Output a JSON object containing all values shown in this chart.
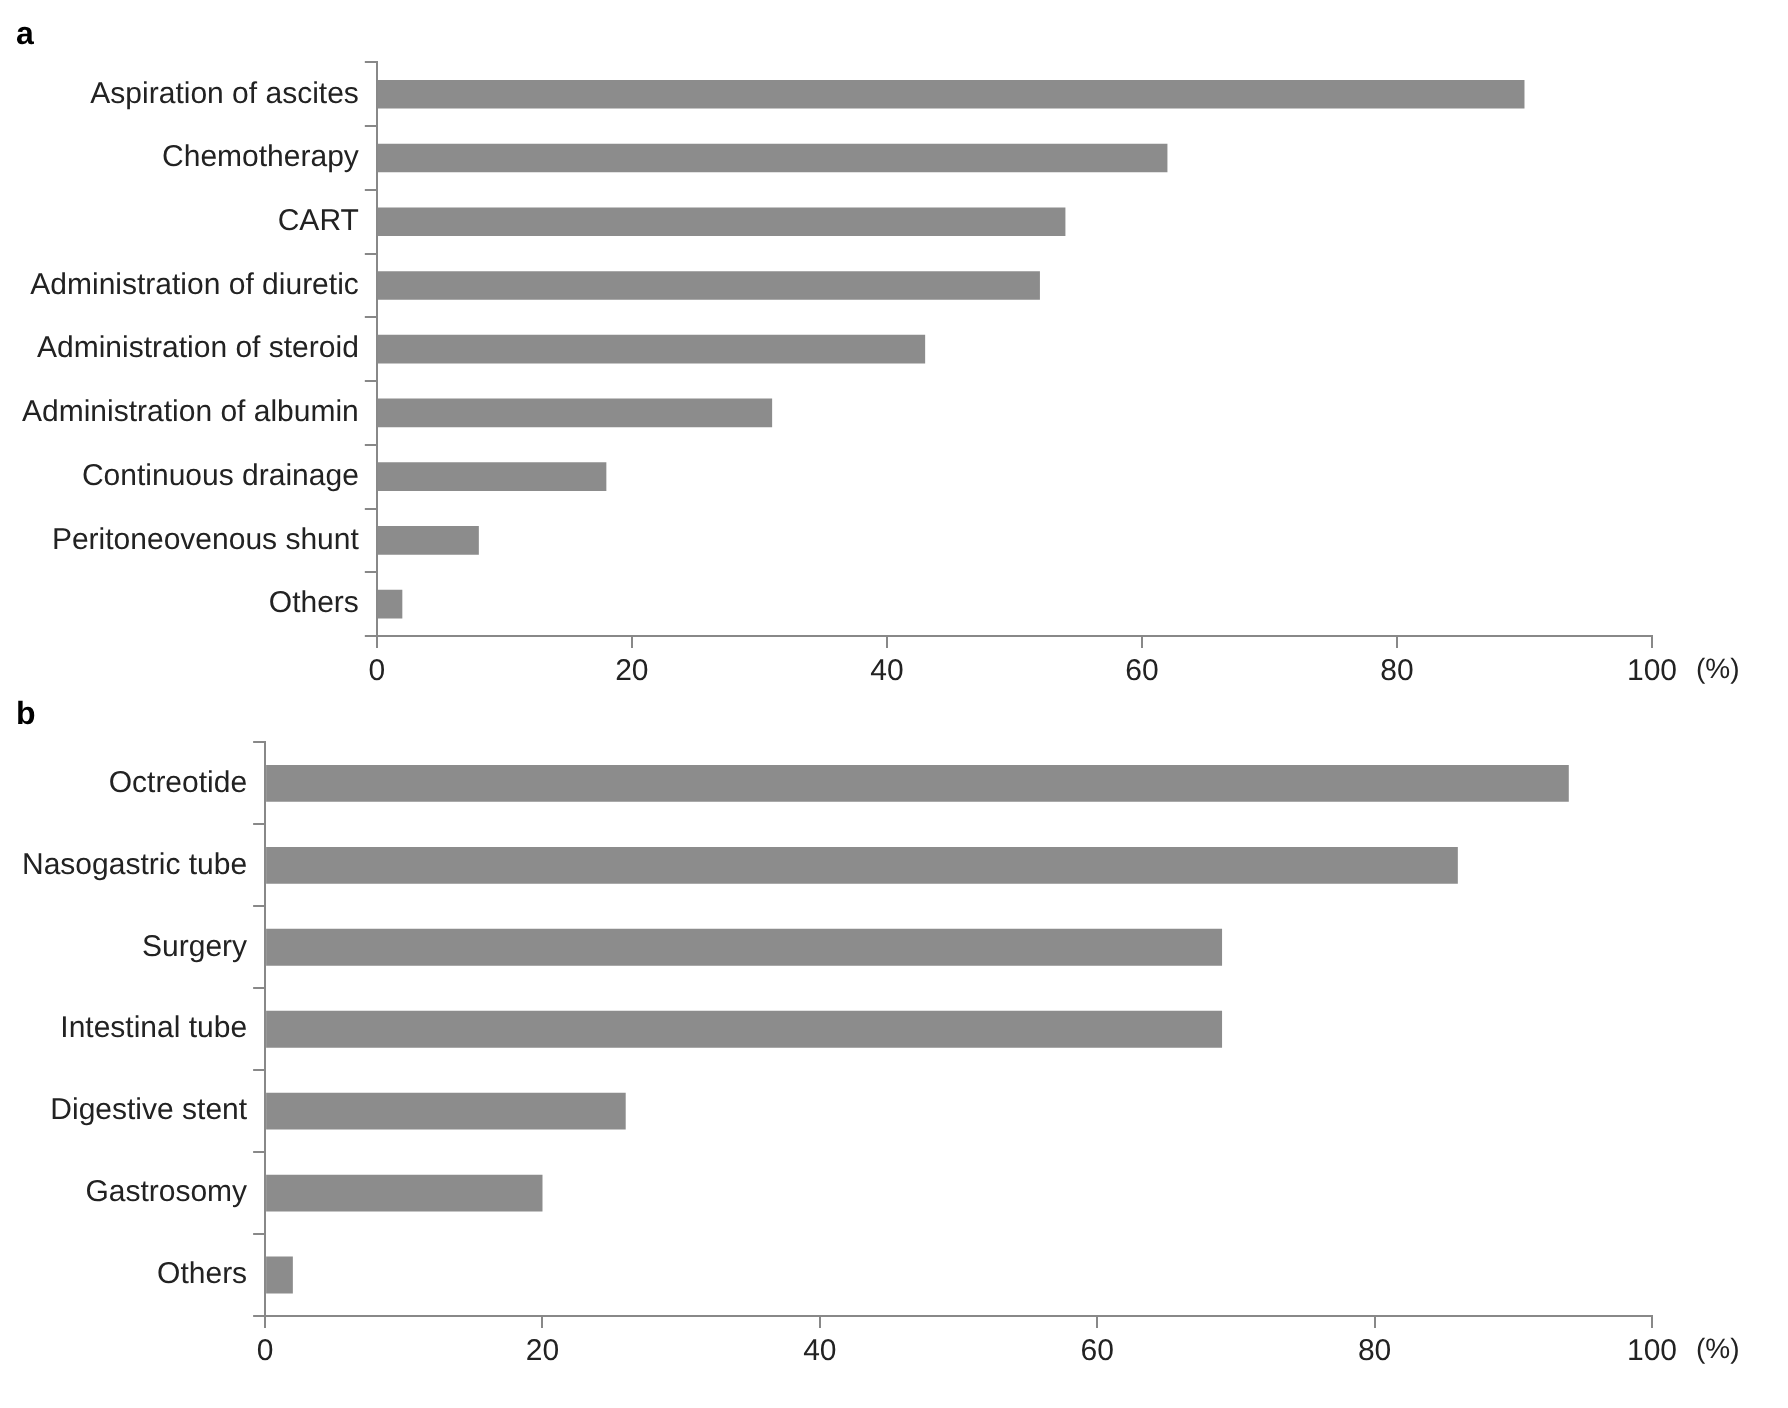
{
  "chart_data": [
    {
      "type": "bar",
      "orientation": "horizontal",
      "title": "a",
      "xlabel": "(%)",
      "categories": [
        "Aspiration of ascites",
        "Chemotherapy",
        "CART",
        "Administration of diuretic",
        "Administration of steroid",
        "Administration of albumin",
        "Continuous drainage",
        "Peritoneovenous shunt",
        "Others"
      ],
      "values": [
        90,
        62,
        54,
        52,
        43,
        31,
        18,
        8,
        2
      ],
      "color": "#8c8c8c",
      "xlim": [
        0,
        100
      ],
      "xticks": [
        0,
        20,
        40,
        60,
        80,
        100
      ],
      "grid": false,
      "legend": false
    },
    {
      "type": "bar",
      "orientation": "horizontal",
      "title": "b",
      "xlabel": "(%)",
      "categories": [
        "Octreotide",
        "Nasogastric tube",
        "Surgery",
        "Intestinal tube",
        "Digestive stent",
        "Gastrosomy",
        "Others"
      ],
      "values": [
        94,
        86,
        69,
        69,
        26,
        20,
        2
      ],
      "color": "#8c8c8c",
      "xlim": [
        0,
        100
      ],
      "xticks": [
        0,
        20,
        40,
        60,
        80,
        100
      ],
      "grid": false,
      "legend": false
    }
  ]
}
